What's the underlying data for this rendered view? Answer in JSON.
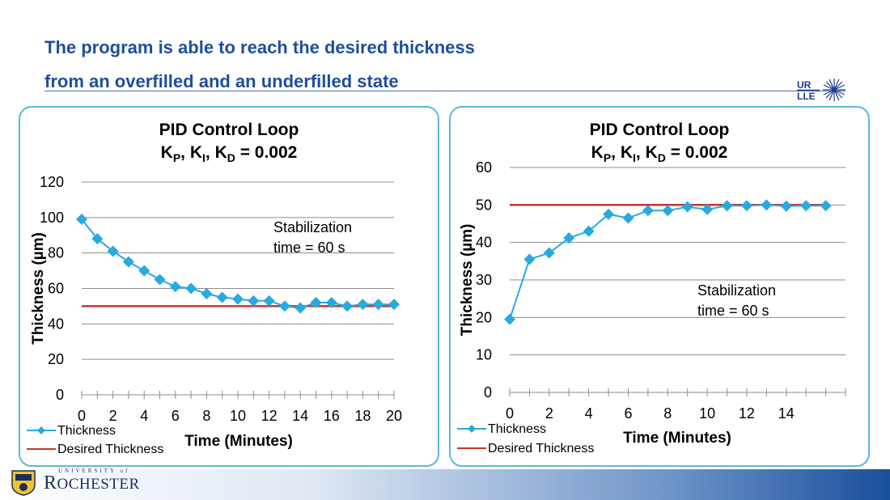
{
  "slide": {
    "title_line1": "The program is able to reach the desired thickness",
    "title_line2": "from an overfilled and an underfilled state",
    "title_color": "#1f4e9c",
    "logo_text_top": "UR",
    "logo_text_bottom": "LLE",
    "footer_university": "UNIVERSITY of",
    "footer_wordmark_first": "R",
    "footer_wordmark_rest": "OCHESTER"
  },
  "chart_data": [
    {
      "type": "line",
      "title": "PID Control Loop",
      "subtitle": {
        "k": "K",
        "p": "P",
        "i": "I",
        "d": "D",
        "sep1": ", ",
        "sep2": ", ",
        "value": " = 0.002"
      },
      "xlabel": "Time (Minutes)",
      "ylabel": "Thickness (µm)",
      "xlim": [
        0,
        20
      ],
      "ylim": [
        0,
        120
      ],
      "x_ticks": [
        0,
        2,
        4,
        6,
        8,
        10,
        12,
        14,
        16,
        18,
        20
      ],
      "y_ticks": [
        0,
        20,
        40,
        60,
        80,
        100,
        120
      ],
      "grid": true,
      "legend_position": "bottom-left",
      "annotation": [
        "Stabilization",
        "time = 60 s"
      ],
      "series": [
        {
          "name": "Thickness",
          "color": "#29a9e1",
          "marker": "diamond",
          "x": [
            0,
            1,
            2,
            3,
            4,
            5,
            6,
            7,
            8,
            9,
            10,
            11,
            12,
            13,
            14,
            15,
            16,
            17,
            18,
            19,
            20
          ],
          "y": [
            99,
            88,
            81,
            75,
            70,
            65,
            61,
            60,
            57,
            55,
            54,
            53,
            53,
            50,
            49,
            52,
            52,
            50,
            51,
            51,
            51
          ]
        },
        {
          "name": "Desired Thickness",
          "color": "#c0392b",
          "marker": "none",
          "x": [
            0,
            20
          ],
          "y": [
            50,
            50
          ]
        }
      ]
    },
    {
      "type": "line",
      "title": "PID Control Loop",
      "subtitle": {
        "k": "K",
        "p": "P",
        "i": "I",
        "d": "D",
        "sep1": ", ",
        "sep2": ", ",
        "value": " = 0.002"
      },
      "xlabel": "Time (Minutes)",
      "ylabel": "Thickness (µm)",
      "xlim": [
        0,
        17
      ],
      "ylim": [
        0,
        60
      ],
      "x_ticks": [
        0,
        2,
        4,
        6,
        8,
        10,
        12,
        14
      ],
      "y_ticks": [
        0,
        10,
        20,
        30,
        40,
        50,
        60
      ],
      "grid": true,
      "legend_position": "bottom-left",
      "annotation": [
        "Stabilization",
        "time = 60 s"
      ],
      "series": [
        {
          "name": "Thickness",
          "color": "#29a9e1",
          "marker": "diamond",
          "x": [
            0,
            1,
            2,
            3,
            4,
            5,
            6,
            7,
            8,
            9,
            10,
            11,
            12,
            13,
            14,
            15,
            16
          ],
          "y": [
            19.5,
            35.5,
            37.2,
            41.2,
            43,
            47.5,
            46.5,
            48.5,
            48.5,
            49.5,
            48.8,
            49.8,
            49.8,
            50,
            49.7,
            49.8,
            49.8
          ]
        },
        {
          "name": "Desired Thickness",
          "color": "#c0392b",
          "marker": "none",
          "x": [
            0,
            16
          ],
          "y": [
            50,
            50
          ]
        }
      ]
    }
  ]
}
